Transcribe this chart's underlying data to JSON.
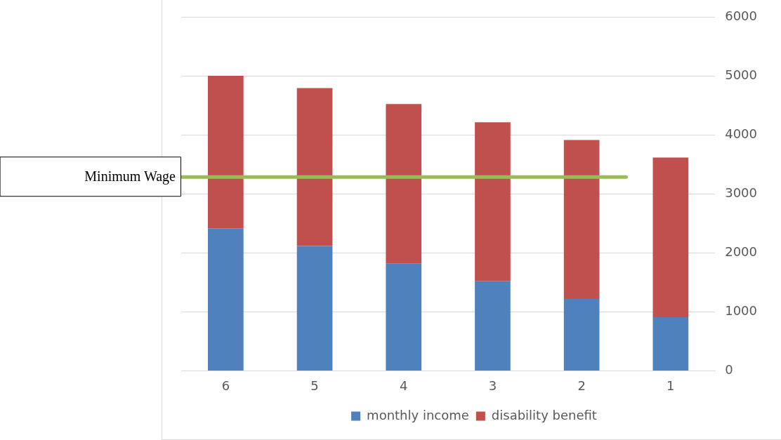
{
  "chart_data": {
    "type": "bar",
    "stacked": true,
    "categories": [
      "6",
      "5",
      "4",
      "3",
      "2",
      "1"
    ],
    "series": [
      {
        "name": "monthly income",
        "color": "#4f81bd",
        "values": [
          2420,
          2120,
          1820,
          1520,
          1220,
          910
        ]
      },
      {
        "name": "disability benefit",
        "color": "#c0504d",
        "values": [
          2590,
          2680,
          2710,
          2700,
          2700,
          2710
        ]
      }
    ],
    "ylim": [
      0,
      6000
    ],
    "yticks": [
      0,
      1000,
      2000,
      3000,
      4000,
      5000,
      6000
    ],
    "grid": "y",
    "legend": "bottom",
    "ref_lines": [
      {
        "axis": "y",
        "value": 3290,
        "label": "Minimum Wage",
        "color": "#9bbb59"
      }
    ]
  }
}
